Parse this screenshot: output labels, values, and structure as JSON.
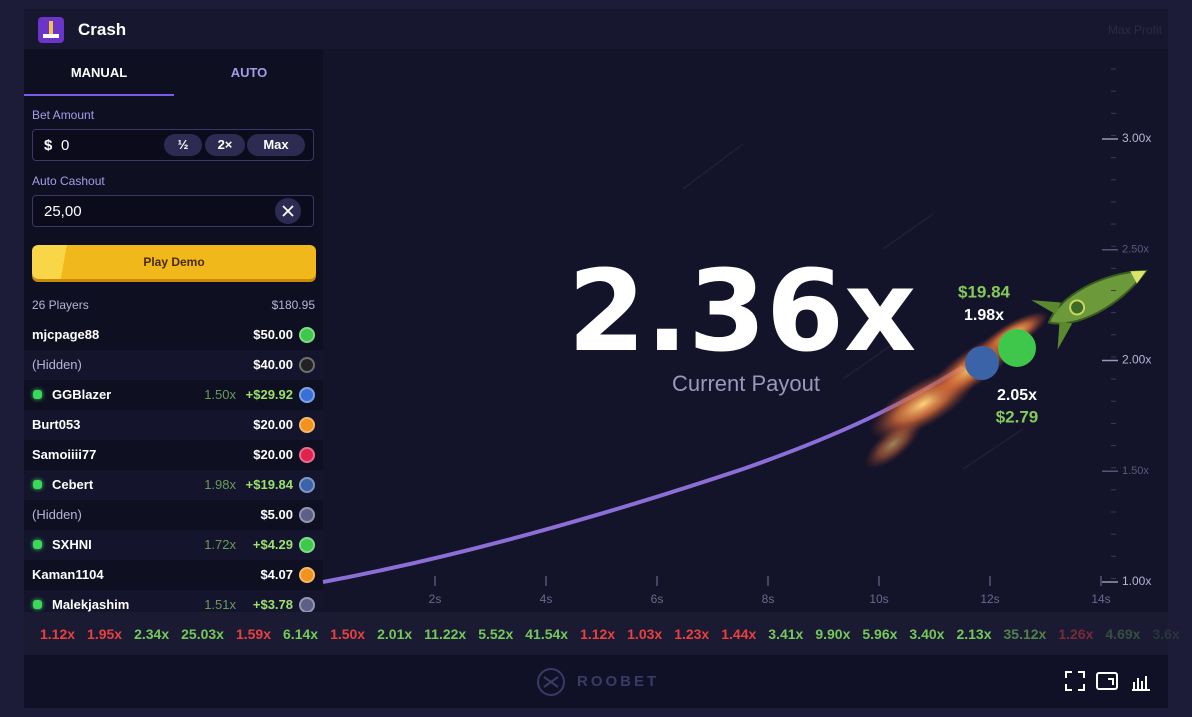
{
  "header": {
    "title": "Crash",
    "max_profit": "Max Profit"
  },
  "tabs": [
    "MANUAL",
    "AUTO"
  ],
  "bet": {
    "label": "Bet Amount",
    "currency": "$",
    "value": "0",
    "buttons": [
      "½",
      "2×",
      "Max"
    ]
  },
  "auto_cashout": {
    "label": "Auto Cashout",
    "value": "25,00"
  },
  "play_button": "Play Demo",
  "players": {
    "count": "26 Players",
    "total": "$180.95",
    "rows": [
      {
        "name": "mjcpage88",
        "amount": "$50.00",
        "coin": "#3ec74a"
      },
      {
        "name": "(Hidden)",
        "amount": "$40.00",
        "coin": "#222222"
      },
      {
        "name": "GGBlazer",
        "multiplier": "1.50x",
        "amount": "+$29.92",
        "coin": "#3b6fd8"
      },
      {
        "name": "Burt053",
        "amount": "$20.00",
        "coin": "#f0921b"
      },
      {
        "name": "Samoiiii77",
        "amount": "$20.00",
        "coin": "#e0224f"
      },
      {
        "name": "Cebert",
        "multiplier": "1.98x",
        "amount": "+$19.84",
        "coin": "#3a63a8"
      },
      {
        "name": "(Hidden)",
        "amount": "$5.00",
        "coin": "#5c5f86"
      },
      {
        "name": "SXHNI",
        "multiplier": "1.72x",
        "amount": "+$4.29",
        "coin": "#3ec74a"
      },
      {
        "name": "Kaman1104",
        "amount": "$4.07",
        "coin": "#f0921b"
      },
      {
        "name": "Malekjashim",
        "multiplier": "1.51x",
        "amount": "+$3.78",
        "coin": "#5c5f86"
      }
    ]
  },
  "graph": {
    "payout": "2.36x",
    "payout_label": "Current Payout",
    "y_ticks": [
      "3.00x",
      "2.50x",
      "2.00x",
      "1.50x",
      "1.00x"
    ],
    "x_ticks": [
      "2s",
      "4s",
      "6s",
      "8s",
      "10s",
      "12s",
      "14s"
    ],
    "bubbles": [
      {
        "amount": "$19.84",
        "multiplier": "1.98x"
      },
      {
        "multiplier": "2.05x",
        "amount": "$2.79"
      }
    ]
  },
  "history": [
    {
      "label": "1.12x",
      "color": "#e8413f"
    },
    {
      "label": "1.95x",
      "color": "#e8413f"
    },
    {
      "label": "2.34x",
      "color": "#74c95a"
    },
    {
      "label": "25.03x",
      "color": "#74c95a"
    },
    {
      "label": "1.59x",
      "color": "#e8413f"
    },
    {
      "label": "6.14x",
      "color": "#74c95a"
    },
    {
      "label": "1.50x",
      "color": "#e8413f"
    },
    {
      "label": "2.01x",
      "color": "#74c95a"
    },
    {
      "label": "11.22x",
      "color": "#74c95a"
    },
    {
      "label": "5.52x",
      "color": "#74c95a"
    },
    {
      "label": "41.54x",
      "color": "#74c95a"
    },
    {
      "label": "1.12x",
      "color": "#e8413f"
    },
    {
      "label": "1.03x",
      "color": "#e8413f"
    },
    {
      "label": "1.23x",
      "color": "#e8413f"
    },
    {
      "label": "1.44x",
      "color": "#e8413f"
    },
    {
      "label": "3.41x",
      "color": "#74c95a"
    },
    {
      "label": "9.90x",
      "color": "#74c95a"
    },
    {
      "label": "5.96x",
      "color": "#74c95a"
    },
    {
      "label": "3.40x",
      "color": "#74c95a"
    },
    {
      "label": "2.13x",
      "color": "#74c95a"
    },
    {
      "label": "35.12x",
      "color": "#74c95a"
    },
    {
      "label": "1.26x",
      "color": "#e8413f"
    },
    {
      "label": "4.69x",
      "color": "#74c95a"
    },
    {
      "label": "3.6x",
      "color": "#74c95a"
    }
  ],
  "footer": {
    "brand": "ROOBET"
  }
}
